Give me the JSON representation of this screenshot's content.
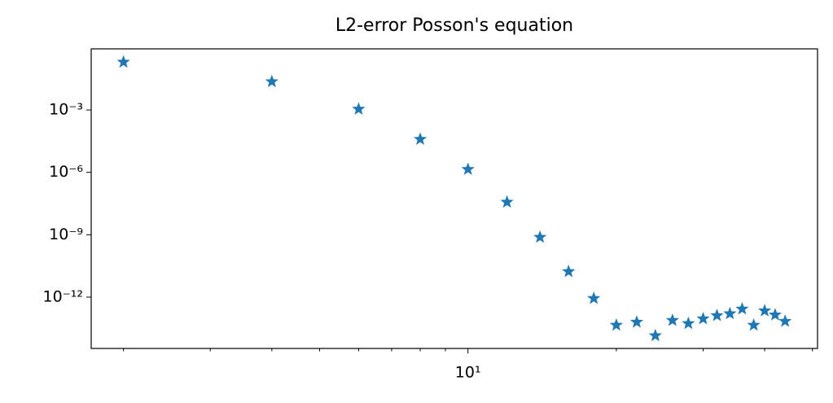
{
  "chart_data": {
    "type": "scatter",
    "title": "L2-error Posson's equation",
    "x": [
      2,
      4,
      6,
      8,
      10,
      12,
      14,
      16,
      18,
      20,
      22,
      24,
      26,
      28,
      30,
      32,
      34,
      36,
      38,
      40,
      42,
      44
    ],
    "series": [
      {
        "color": "#1f77b4",
        "marker": "star",
        "values": [
          0.2,
          0.023,
          0.0011,
          3.9e-05,
          1.4e-06,
          3.7e-08,
          7.6e-10,
          1.7e-11,
          8.7e-13,
          4.5e-14,
          6.3e-14,
          1.4e-14,
          7.6e-14,
          5.4e-14,
          9.1e-14,
          1.3e-13,
          1.6e-13,
          2.7e-13,
          4.5e-14,
          2.2e-13,
          1.4e-13,
          6.9e-14
        ]
      }
    ],
    "xscale": "log",
    "yscale": "log",
    "xlim": [
      1.72,
      51.2
    ],
    "ylim": [
      3.4e-15,
      0.87
    ],
    "xticks": [
      {
        "value": 10,
        "label": "10¹"
      }
    ],
    "xminorticks": [
      2,
      3,
      4,
      5,
      6,
      7,
      8,
      9,
      20,
      30,
      40,
      50
    ],
    "yticks": [
      {
        "value": 0.001,
        "label": "10⁻³"
      },
      {
        "value": 1e-06,
        "label": "10⁻⁶"
      },
      {
        "value": 1e-09,
        "label": "10⁻⁹"
      },
      {
        "value": 1e-12,
        "label": "10⁻¹²"
      }
    ],
    "grid": false
  }
}
